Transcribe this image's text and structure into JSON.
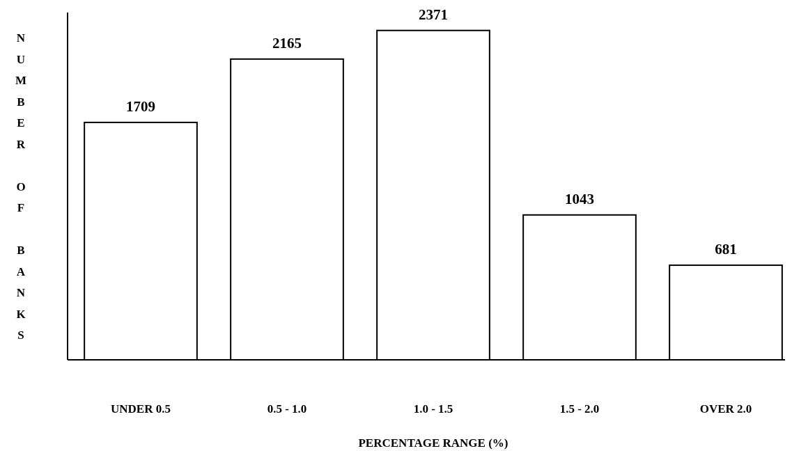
{
  "chart_data": {
    "type": "bar",
    "xlabel": "PERCENTAGE RANGE (%)",
    "ylabel": "NUMBER OF BANKS",
    "categories": [
      "UNDER 0.5",
      "0.5 - 1.0",
      "1.0 - 1.5",
      "1.5 - 2.0",
      "OVER 2.0"
    ],
    "values": [
      1709,
      2165,
      2371,
      1043,
      681
    ],
    "color": "#ffffff",
    "ylim": [
      0,
      2500
    ],
    "data_labels": true,
    "tick_labels": "x"
  }
}
